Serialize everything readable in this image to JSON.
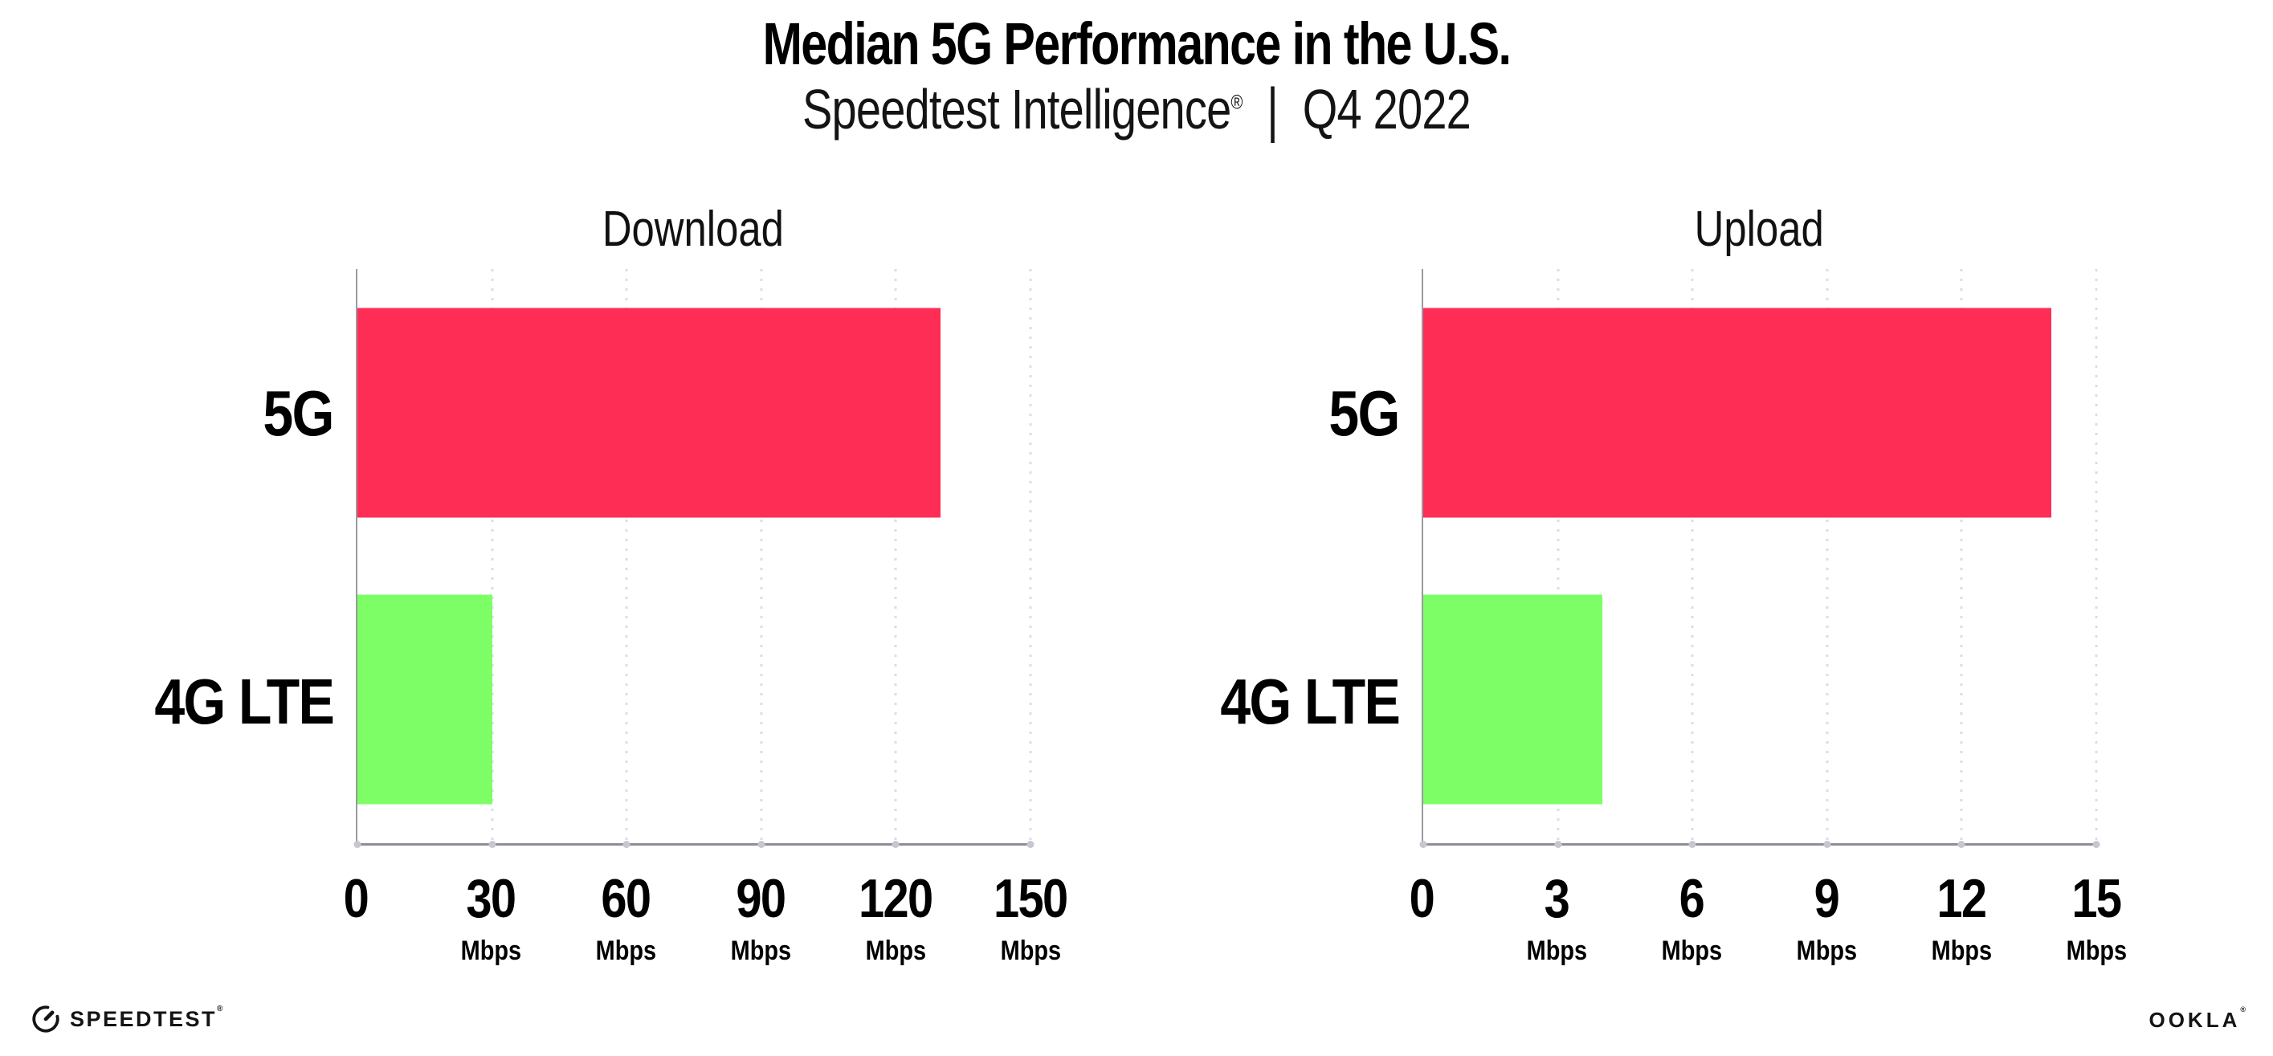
{
  "header": {
    "title": "Median 5G Performance in the U.S.",
    "subtitle": {
      "brand": "Speedtest Intelligence",
      "registered_mark": "®",
      "separator": "|",
      "period": "Q4 2022"
    }
  },
  "chart_data": [
    {
      "type": "bar",
      "orientation": "horizontal",
      "title": "Download",
      "categories": [
        "5G",
        "4G LTE"
      ],
      "values": [
        130,
        30
      ],
      "unit": "Mbps",
      "xlim": [
        0,
        150
      ],
      "xticks": [
        0,
        30,
        60,
        90,
        120,
        150
      ],
      "bar_colors": [
        "#fd2d55",
        "#7dfd66"
      ],
      "grid": "vertical-dotted",
      "legend": "none"
    },
    {
      "type": "bar",
      "orientation": "horizontal",
      "title": "Upload",
      "categories": [
        "5G",
        "4G LTE"
      ],
      "values": [
        14,
        4
      ],
      "unit": "Mbps",
      "xlim": [
        0,
        15
      ],
      "xticks": [
        0,
        3,
        6,
        9,
        12,
        15
      ],
      "bar_colors": [
        "#fd2d55",
        "#7dfd66"
      ],
      "grid": "vertical-dotted",
      "legend": "none"
    }
  ],
  "footer": {
    "speedtest_logo_text": "SPEEDTEST",
    "speedtest_mark": "®",
    "ookla_logo_text": "OOKLA",
    "ookla_mark": "®"
  },
  "colors": {
    "bar_5g": "#fd2d55",
    "bar_4g_lte": "#7dfd66",
    "axis": "#8e8e96",
    "grid_dot": "#dcdce8",
    "text": "#000000"
  }
}
